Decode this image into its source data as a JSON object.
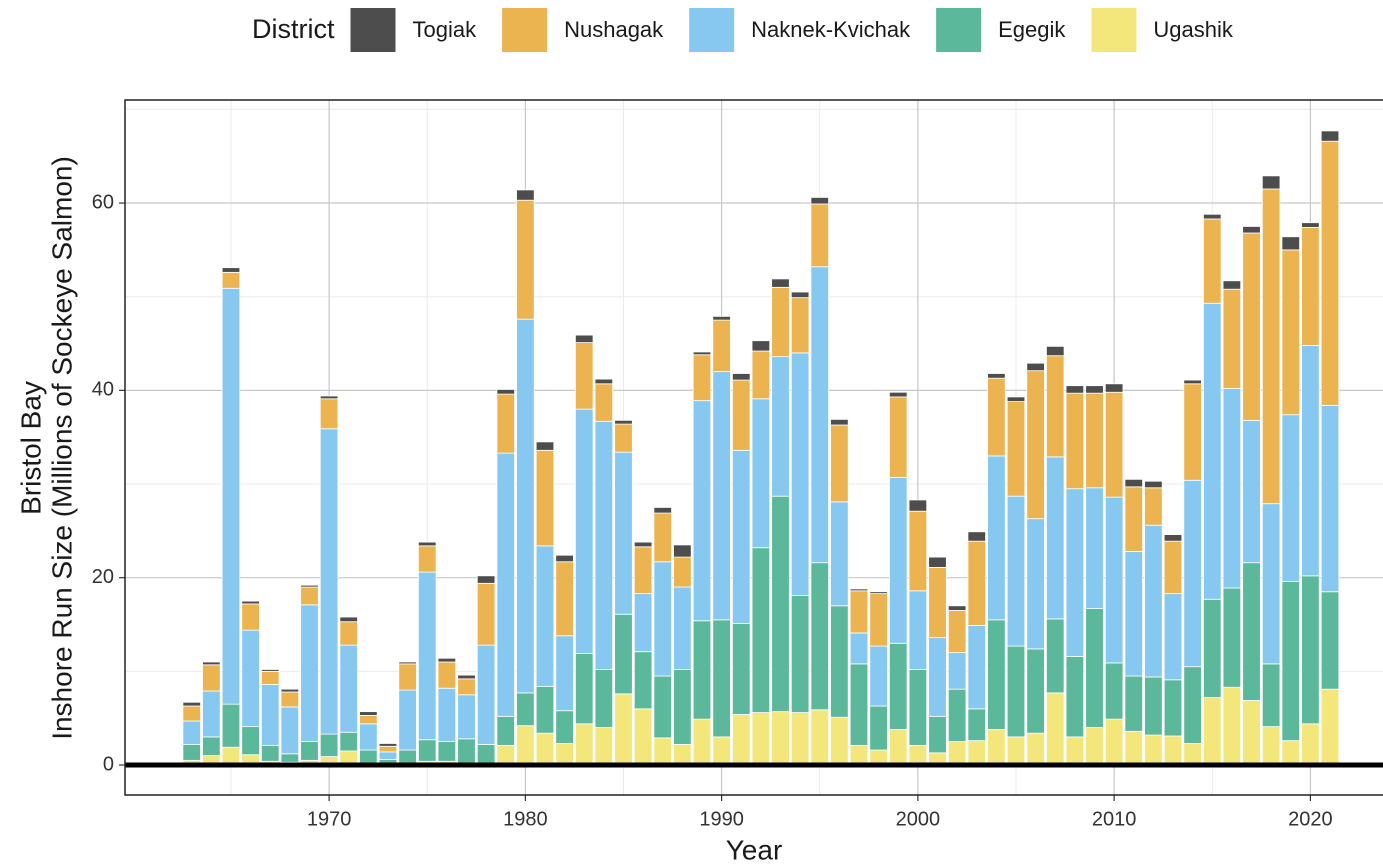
{
  "chart_data": {
    "type": "stacked_bar",
    "xlabel": "Year",
    "ylabel": [
      "Bristol Bay",
      "Inshore Run Size (Millions of Sockeye Salmon)"
    ],
    "legend_title": "District",
    "legend": "top",
    "grid": true,
    "hline": 0,
    "x": [
      1963,
      1964,
      1965,
      1966,
      1967,
      1968,
      1969,
      1970,
      1971,
      1972,
      1973,
      1974,
      1975,
      1976,
      1977,
      1978,
      1979,
      1980,
      1981,
      1982,
      1983,
      1984,
      1985,
      1986,
      1987,
      1988,
      1989,
      1990,
      1991,
      1992,
      1993,
      1994,
      1995,
      1996,
      1997,
      1998,
      1999,
      2000,
      2001,
      2002,
      2003,
      2004,
      2005,
      2006,
      2007,
      2008,
      2009,
      2010,
      2011,
      2012,
      2013,
      2014,
      2015,
      2016,
      2017,
      2018,
      2019,
      2020,
      2021
    ],
    "xlim": [
      1959.6,
      2023.7
    ],
    "xticks": [
      1970,
      1980,
      1990,
      2000,
      2010,
      2020
    ],
    "ylim": [
      -3.2,
      71
    ],
    "yticks": [
      0,
      20,
      40,
      60
    ],
    "series": [
      {
        "name": "Togiak",
        "color": "#4d4d4d",
        "values": [
          0.4,
          0.3,
          0.5,
          0.3,
          0.2,
          0.3,
          0.2,
          0.3,
          0.5,
          0.4,
          0.3,
          0.2,
          0.4,
          0.4,
          0.4,
          0.8,
          0.5,
          1.1,
          0.9,
          0.7,
          0.8,
          0.5,
          0.4,
          0.5,
          0.6,
          1.3,
          0.3,
          0.4,
          0.7,
          1.1,
          0.9,
          0.6,
          0.7,
          0.6,
          0.2,
          0.2,
          0.5,
          1.2,
          1.1,
          0.5,
          1.0,
          0.5,
          0.5,
          0.8,
          1.0,
          0.8,
          0.8,
          0.9,
          0.8,
          0.7,
          0.7,
          0.4,
          0.5,
          0.9,
          0.7,
          1.4,
          1.4,
          0.5,
          1.1
        ]
      },
      {
        "name": "Nushagak",
        "color": "#ebb451",
        "values": [
          1.6,
          2.8,
          1.7,
          2.8,
          1.4,
          1.6,
          1.9,
          3.2,
          2.5,
          0.9,
          0.6,
          2.8,
          2.8,
          2.8,
          1.7,
          6.6,
          6.3,
          12.7,
          10.2,
          7.9,
          7.1,
          4.0,
          3.0,
          5.0,
          5.2,
          3.2,
          4.9,
          5.5,
          7.5,
          5.1,
          7.4,
          5.9,
          6.7,
          8.2,
          4.5,
          5.6,
          8.6,
          8.5,
          7.5,
          4.5,
          9.0,
          8.3,
          10.1,
          15.8,
          10.8,
          10.2,
          10.1,
          11.2,
          6.9,
          4.0,
          5.6,
          10.3,
          9.0,
          10.6,
          20.0,
          33.6,
          17.6,
          12.6,
          28.2
        ]
      },
      {
        "name": "Naknek-Kvichak",
        "color": "#86c8ef",
        "values": [
          2.5,
          4.9,
          44.4,
          10.3,
          6.5,
          5.0,
          14.6,
          32.6,
          9.3,
          2.8,
          0.8,
          6.4,
          17.9,
          5.7,
          4.7,
          10.6,
          28.1,
          39.9,
          15.0,
          8.0,
          26.1,
          26.5,
          17.3,
          6.2,
          12.2,
          8.8,
          23.5,
          26.5,
          18.5,
          15.9,
          14.9,
          25.9,
          31.6,
          11.1,
          3.3,
          6.4,
          17.7,
          8.4,
          8.4,
          3.9,
          8.9,
          17.5,
          16.0,
          13.9,
          17.3,
          17.9,
          12.9,
          17.7,
          13.3,
          16.2,
          9.2,
          19.9,
          31.6,
          21.3,
          15.2,
          17.1,
          17.8,
          24.6,
          19.9
        ]
      },
      {
        "name": "Egegik",
        "color": "#5bb89a",
        "values": [
          1.7,
          2.0,
          4.6,
          3.0,
          1.7,
          0.9,
          2.0,
          2.4,
          2.0,
          1.5,
          0.5,
          1.5,
          2.3,
          2.1,
          2.7,
          2.1,
          3.1,
          3.5,
          5.0,
          3.5,
          7.5,
          6.2,
          8.5,
          6.1,
          6.6,
          8.0,
          10.5,
          12.5,
          9.7,
          17.6,
          23.0,
          12.5,
          15.7,
          11.9,
          8.7,
          4.7,
          9.2,
          8.1,
          3.9,
          5.6,
          3.4,
          11.7,
          9.7,
          9.0,
          7.9,
          8.6,
          12.7,
          6.0,
          5.9,
          6.2,
          6.0,
          8.2,
          10.5,
          10.6,
          14.7,
          6.7,
          17.0,
          15.8,
          10.4
        ]
      },
      {
        "name": "Ugashik",
        "color": "#f3e77c",
        "values": [
          0.5,
          1.0,
          1.9,
          1.1,
          0.4,
          0.3,
          0.5,
          0.9,
          1.5,
          0.1,
          0.1,
          0.1,
          0.4,
          0.4,
          0.1,
          0.1,
          2.1,
          4.2,
          3.4,
          2.3,
          4.4,
          4.0,
          7.6,
          6.0,
          2.9,
          2.2,
          4.9,
          3.0,
          5.4,
          5.6,
          5.7,
          5.6,
          5.9,
          5.1,
          2.1,
          1.6,
          3.8,
          2.1,
          1.3,
          2.5,
          2.6,
          3.8,
          3.0,
          3.4,
          7.7,
          3.0,
          4.0,
          4.9,
          3.6,
          3.2,
          3.1,
          2.3,
          7.2,
          8.3,
          6.9,
          4.1,
          2.6,
          4.4,
          8.1
        ]
      }
    ]
  }
}
